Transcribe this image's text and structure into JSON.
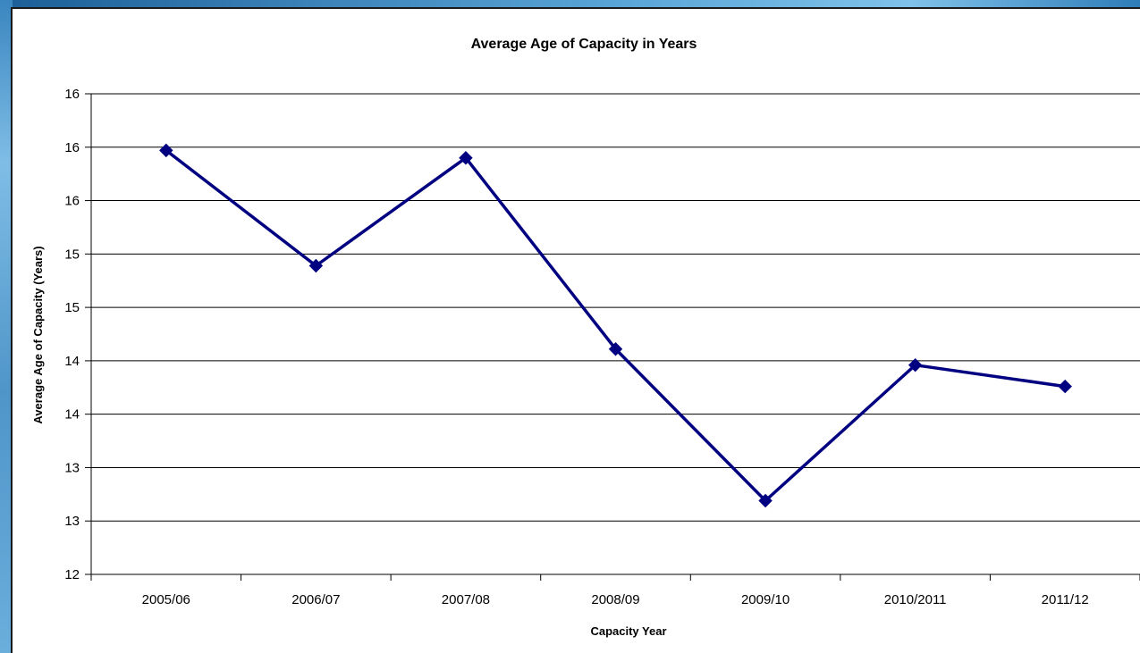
{
  "chart_data": {
    "type": "line",
    "title": "Average Age of Capacity in Years",
    "xlabel": "Capacity Year",
    "ylabel": "Average Age of Capacity (Years)",
    "categories": [
      "2005/06",
      "2006/07",
      "2007/08",
      "2008/09",
      "2009/10",
      "2010/2011",
      "2011/12"
    ],
    "series": [
      {
        "values": [
          15.97,
          14.89,
          15.9,
          14.11,
          12.69,
          13.96,
          13.76
        ]
      }
    ],
    "ylim": [
      12,
      16.5
    ],
    "y_ticks": [
      12,
      12.5,
      13,
      13.5,
      14,
      14.5,
      15,
      15.5,
      16,
      16.5
    ],
    "y_tick_labels": [
      "12",
      "13",
      "13",
      "14",
      "14",
      "15",
      "15",
      "16",
      "16",
      "16"
    ],
    "grid": "horizontal",
    "legend": "none",
    "colors": {
      "line": "#000080",
      "marker": "#000080",
      "grid": "#000000"
    }
  }
}
